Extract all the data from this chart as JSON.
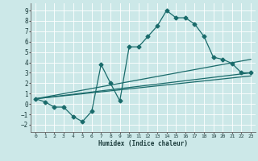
{
  "xlabel": "Humidex (Indice chaleur)",
  "bg_color": "#cce8e8",
  "grid_color": "#ffffff",
  "line_color": "#1a6b6b",
  "xlim": [
    -0.5,
    23.5
  ],
  "ylim": [
    -2.7,
    9.7
  ],
  "xticks": [
    0,
    1,
    2,
    3,
    4,
    5,
    6,
    7,
    8,
    9,
    10,
    11,
    12,
    13,
    14,
    15,
    16,
    17,
    18,
    19,
    20,
    21,
    22,
    23
  ],
  "yticks": [
    -2,
    -1,
    0,
    1,
    2,
    3,
    4,
    5,
    6,
    7,
    8,
    9
  ],
  "curve_x": [
    0,
    1,
    2,
    3,
    4,
    5,
    6,
    7,
    8,
    9,
    10,
    11,
    12,
    13,
    14,
    15,
    16,
    17,
    18,
    19,
    20,
    21,
    22,
    23
  ],
  "curve_y": [
    0.5,
    0.2,
    -0.3,
    -0.3,
    -1.2,
    -1.7,
    -0.7,
    3.8,
    2.0,
    0.3,
    5.5,
    5.5,
    6.5,
    7.5,
    9.0,
    8.3,
    8.3,
    7.7,
    6.5,
    4.5,
    4.3,
    3.9,
    3.0,
    3.0
  ],
  "line2_x": [
    0,
    23
  ],
  "line2_y": [
    0.5,
    4.3
  ],
  "line3_x": [
    0,
    23
  ],
  "line3_y": [
    0.5,
    3.0
  ],
  "line4_x": [
    0,
    23
  ],
  "line4_y": [
    0.5,
    2.7
  ],
  "marker": "D",
  "markersize": 2.5,
  "linewidth": 0.9
}
